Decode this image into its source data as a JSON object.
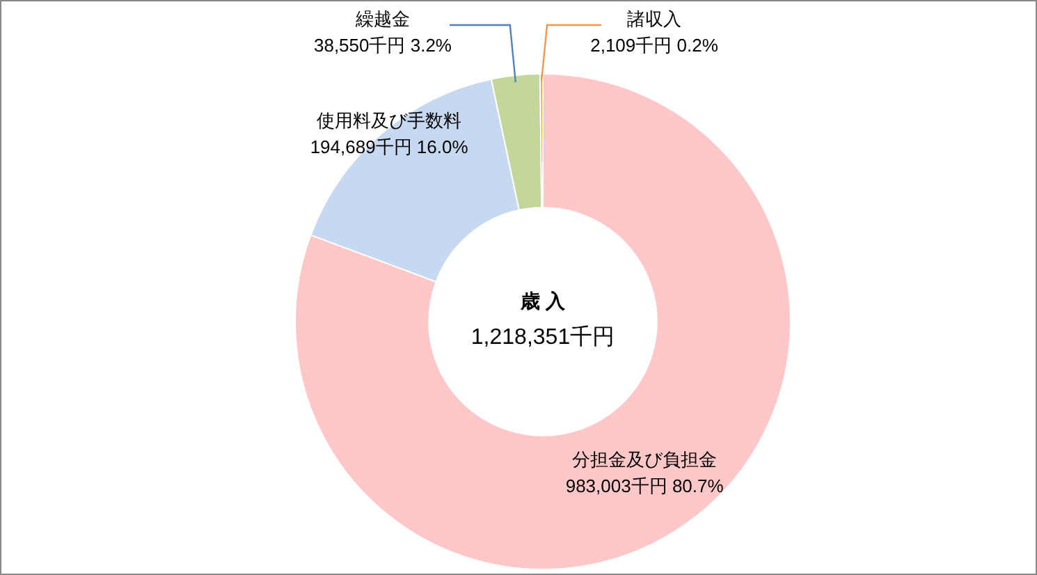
{
  "chart_data": {
    "type": "donut",
    "categories": [
      "分担金及び負担金",
      "使用料及び手数料",
      "繰越金",
      "諸収入"
    ],
    "values": [
      983003,
      194689,
      38550,
      2109
    ],
    "colors": [
      "#ffc7c7",
      "#c6d9f1",
      "#c3d69b",
      "#f79646"
    ],
    "value_labels": [
      "983,003千円 80.7%",
      "194,689千円 16.0%",
      "38,550千円 3.2%",
      "2,109千円 0.2%"
    ],
    "annotations": [
      "歳 入",
      "1,218,351千円"
    ]
  }
}
